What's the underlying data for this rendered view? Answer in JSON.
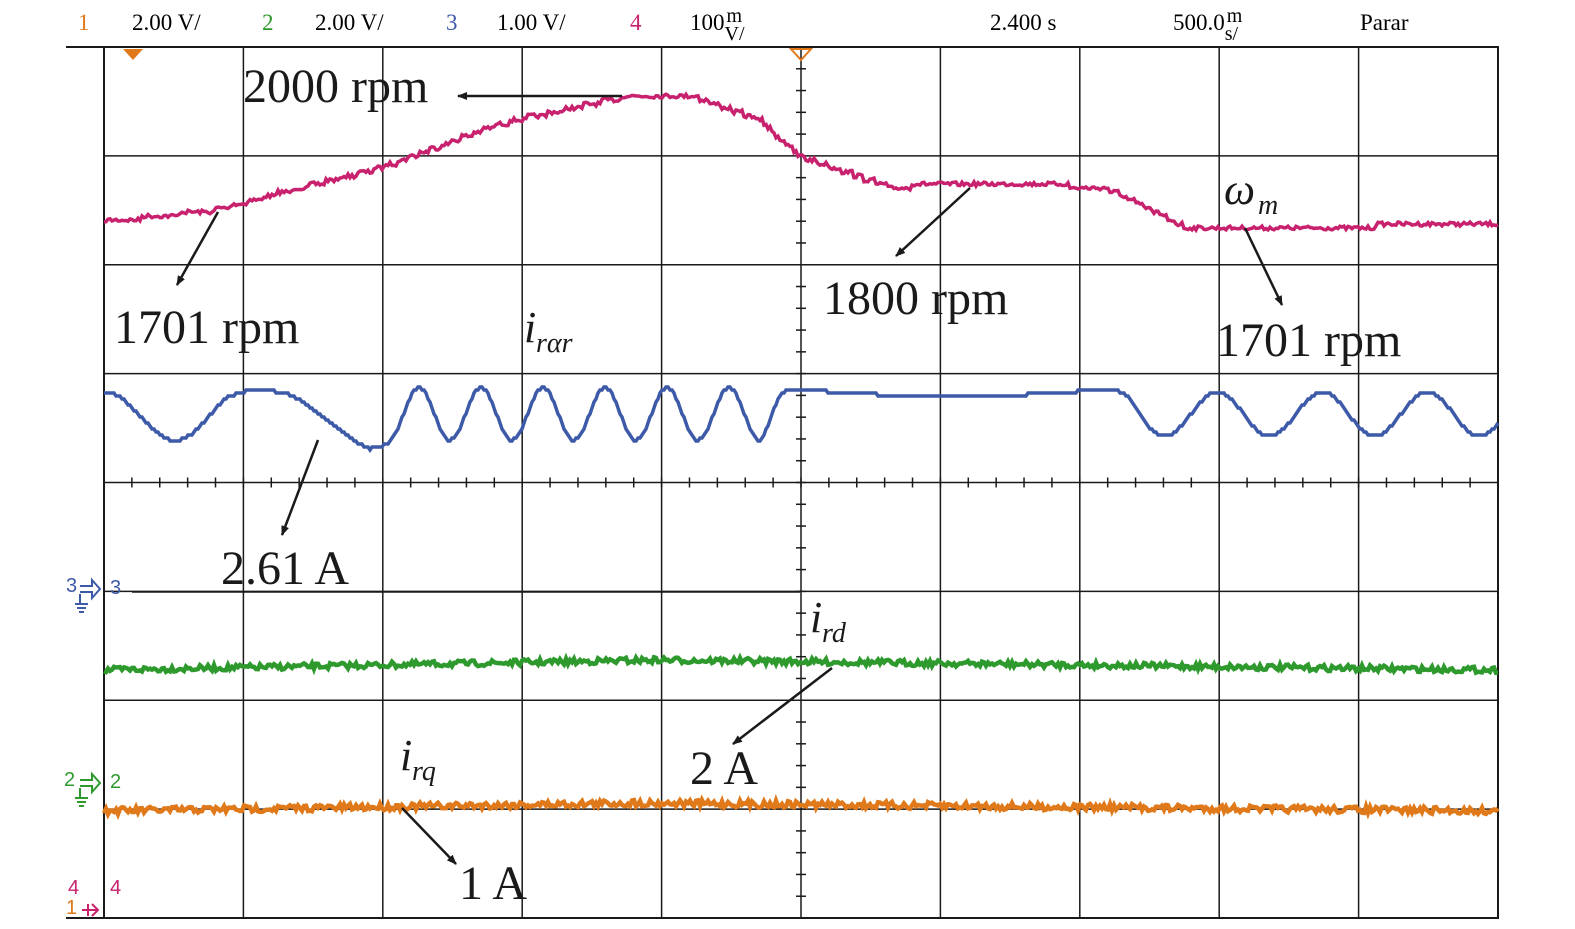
{
  "status": {
    "ch1": {
      "num": "1",
      "scale": "2.00 V/"
    },
    "ch2": {
      "num": "2",
      "scale": "2.00 V/"
    },
    "ch3": {
      "num": "3",
      "scale": "1.00 V/"
    },
    "ch4": {
      "num": "4",
      "scale_base": "100",
      "scale_top": "m",
      "scale_bottom": "V/"
    },
    "trigger_time": "2.400 s",
    "timebase": {
      "base": "500.0",
      "top": "m",
      "bottom": "s/"
    },
    "run_state": "Parar"
  },
  "colors": {
    "ch1": "#e0791a",
    "ch2": "#2e9a2e",
    "ch3": "#3d5aa8",
    "ch4": "#c8216e",
    "grid": "#1a1a1a"
  },
  "markers": {
    "ch3": {
      "left": "3",
      "right": "3"
    },
    "ch2": {
      "left": "2",
      "right": "2"
    },
    "ch4": {
      "left": "4",
      "right": "4"
    },
    "ch1": {
      "left": "1"
    }
  },
  "annotations": {
    "speed_peak": "2000 rpm",
    "speed_start": "1701 rpm",
    "speed_mid": "1800 rpm",
    "speed_end": "1701 rpm",
    "omega_symbol": "ω",
    "omega_sub": "m",
    "i_rar_symbol": "i",
    "i_rar_sub": "rαr",
    "i_rar_value": "2.61 A",
    "i_rd_symbol": "i",
    "i_rd_sub": "rd",
    "i_rd_value": "2 A",
    "i_rq_symbol": "i",
    "i_rq_sub": "rq",
    "i_rq_value": "1 A"
  }
}
